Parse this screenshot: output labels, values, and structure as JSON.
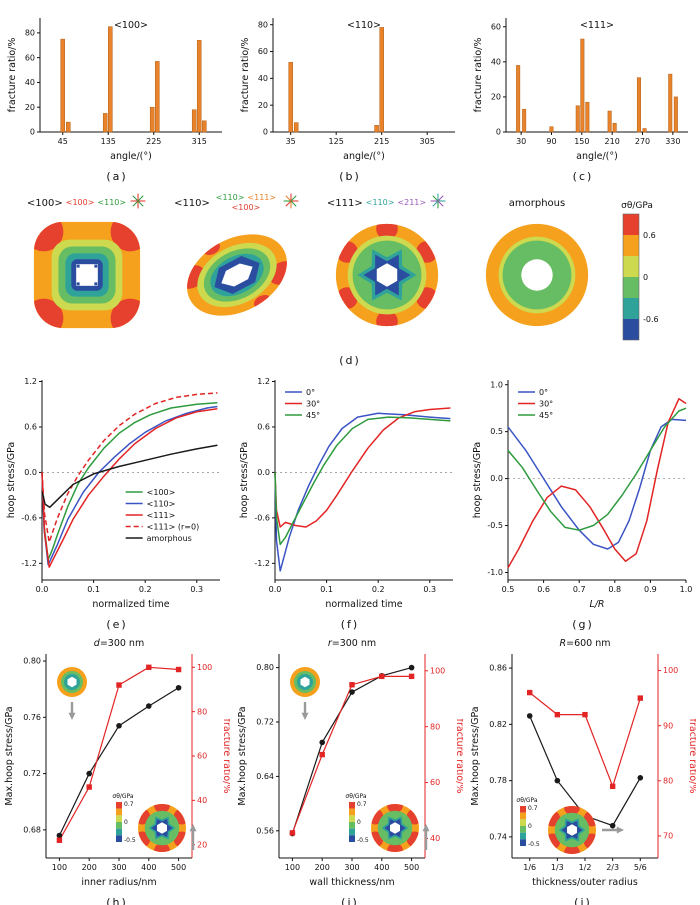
{
  "figure": {
    "captions": {
      "a": "(a)",
      "b": "(b)",
      "c": "(c)",
      "d": "(d)",
      "e": "(e)",
      "f": "(f)",
      "g": "(g)",
      "h": "(h)",
      "i": "(i)",
      "j": "(j)"
    }
  },
  "colors": {
    "bar": "#e8832c",
    "axis_red": "#e32424",
    "gray_arrow": "#9a9a9a",
    "stress_scale": [
      "#e6402e",
      "#f5a11d",
      "#cdd94e",
      "#66bd63",
      "#2fa39a",
      "#2b4da0"
    ]
  },
  "contour_row": {
    "plots": [
      {
        "title": "<100>",
        "annotations": [
          {
            "label": "<100>",
            "color": "#e23b2e"
          },
          {
            "label": "<110>",
            "color": "#2e9b3f"
          }
        ],
        "star_colors": [
          "#e23b2e",
          "#2e9b3f"
        ]
      },
      {
        "title": "<110>",
        "annotations": [
          {
            "label": "<110>",
            "color": "#2e9b3f"
          },
          {
            "label": "<111>",
            "color": "#e8832c"
          },
          {
            "label": "<100>",
            "color": "#e23b2e"
          }
        ],
        "star_colors": [
          "#e23b2e",
          "#2e9b3f",
          "#e8832c"
        ]
      },
      {
        "title": "<111>",
        "annotations": [
          {
            "label": "<110>",
            "color": "#2fa39a"
          },
          {
            "label": "<211>",
            "color": "#9b59b6"
          }
        ],
        "star_colors": [
          "#2fa39a",
          "#9b59b6",
          "#2e9b3f"
        ]
      },
      {
        "title": "amorphous",
        "annotations": [],
        "star_colors": []
      }
    ],
    "colorbar": {
      "title": "σθ/GPa",
      "tick_labels": [
        "0.6",
        "0",
        "-0.6"
      ]
    }
  },
  "chart_data": [
    {
      "id": "a",
      "type": "bar",
      "title": "<100>",
      "xlabel": "angle/(°)",
      "ylabel": "fracture ratio/%",
      "xlim": [
        0,
        360
      ],
      "ylim": [
        0,
        92
      ],
      "xticks": [
        45,
        135,
        225,
        315
      ],
      "yticks": [
        0,
        20,
        40,
        60,
        80
      ],
      "xdec": 0,
      "ydec": 0,
      "bar_width_deg": 8,
      "bars": [
        [
          45,
          75
        ],
        [
          56,
          8
        ],
        [
          129,
          15
        ],
        [
          139,
          85
        ],
        [
          222,
          20
        ],
        [
          232,
          57
        ],
        [
          305,
          18
        ],
        [
          315,
          74
        ],
        [
          325,
          9
        ]
      ]
    },
    {
      "id": "b",
      "type": "bar",
      "title": "<110>",
      "xlabel": "angle/(°)",
      "ylabel": "fracture ratio/%",
      "xlim": [
        0,
        360
      ],
      "ylim": [
        0,
        85
      ],
      "xticks": [
        35,
        125,
        215,
        305
      ],
      "yticks": [
        0,
        20,
        40,
        60,
        80
      ],
      "xdec": 0,
      "ydec": 0,
      "bar_width_deg": 8,
      "bars": [
        [
          35,
          52
        ],
        [
          46,
          7
        ],
        [
          205,
          5
        ],
        [
          215,
          78
        ]
      ]
    },
    {
      "id": "c",
      "type": "bar",
      "title": "<111>",
      "xlabel": "angle/(°)",
      "ylabel": "fracture ratio/%",
      "xlim": [
        0,
        360
      ],
      "ylim": [
        0,
        65
      ],
      "xticks": [
        30,
        90,
        150,
        210,
        270,
        330
      ],
      "yticks": [
        0,
        20,
        40,
        60
      ],
      "xdec": 0,
      "ydec": 0,
      "bar_width_deg": 7,
      "bars": [
        [
          24,
          38
        ],
        [
          36,
          13
        ],
        [
          90,
          3
        ],
        [
          142,
          15
        ],
        [
          151,
          53
        ],
        [
          161,
          17
        ],
        [
          205,
          12
        ],
        [
          215,
          5
        ],
        [
          263,
          31
        ],
        [
          274,
          2
        ],
        [
          325,
          33
        ],
        [
          336,
          20
        ]
      ]
    },
    {
      "id": "e",
      "type": "line",
      "xlabel": "normalized time",
      "ylabel": "hoop stress/GPa",
      "xlim": [
        0,
        0.345
      ],
      "ylim": [
        -1.42,
        1.22
      ],
      "xticks": [
        0,
        0.1,
        0.2,
        0.3
      ],
      "yticks": [
        -1.2,
        -0.6,
        0,
        0.6,
        1.2
      ],
      "xdec": 1,
      "ydec": 1,
      "zeroline": true,
      "legend": "br",
      "series": [
        {
          "name": "<100>",
          "color": "#2e9b3f",
          "x": [
            0,
            0.004,
            0.012,
            0.02,
            0.03,
            0.05,
            0.07,
            0.09,
            0.12,
            0.15,
            0.18,
            0.21,
            0.25,
            0.3,
            0.34
          ],
          "y": [
            0,
            -0.7,
            -1.15,
            -1.02,
            -0.82,
            -0.45,
            -0.15,
            0.06,
            0.32,
            0.52,
            0.66,
            0.76,
            0.85,
            0.9,
            0.92
          ]
        },
        {
          "name": "<110>",
          "color": "#3b54c4",
          "x": [
            0,
            0.004,
            0.012,
            0.02,
            0.03,
            0.05,
            0.08,
            0.11,
            0.14,
            0.17,
            0.2,
            0.24,
            0.28,
            0.32,
            0.34
          ],
          "y": [
            0,
            -0.75,
            -1.22,
            -1.1,
            -0.95,
            -0.62,
            -0.26,
            0,
            0.2,
            0.38,
            0.53,
            0.68,
            0.78,
            0.85,
            0.87
          ]
        },
        {
          "name": "<111>",
          "color": "#e32424",
          "x": [
            0,
            0.005,
            0.014,
            0.025,
            0.04,
            0.06,
            0.09,
            0.12,
            0.15,
            0.18,
            0.22,
            0.26,
            0.3,
            0.34
          ],
          "y": [
            0,
            -0.8,
            -1.25,
            -1.1,
            -0.9,
            -0.62,
            -0.3,
            -0.05,
            0.18,
            0.38,
            0.58,
            0.72,
            0.8,
            0.84
          ]
        },
        {
          "name": "<111> (r=0)",
          "color": "#e32424",
          "dash": "5 3",
          "x": [
            0,
            0.005,
            0.014,
            0.03,
            0.05,
            0.07,
            0.09,
            0.12,
            0.15,
            0.18,
            0.22,
            0.26,
            0.3,
            0.34
          ],
          "y": [
            0,
            -0.55,
            -0.92,
            -0.6,
            -0.28,
            -0.04,
            0.16,
            0.42,
            0.62,
            0.77,
            0.91,
            0.99,
            1.03,
            1.05
          ]
        },
        {
          "name": "amorphous",
          "color": "#1a1a1a",
          "x": [
            0,
            0.006,
            0.015,
            0.03,
            0.06,
            0.1,
            0.15,
            0.2,
            0.25,
            0.3,
            0.34
          ],
          "y": [
            -0.25,
            -0.42,
            -0.46,
            -0.36,
            -0.16,
            -0.02,
            0.08,
            0.16,
            0.24,
            0.31,
            0.36
          ]
        }
      ]
    },
    {
      "id": "f",
      "type": "line",
      "xlabel": "normalized time",
      "ylabel": "hoop stress/GPa",
      "xlim": [
        0,
        0.345
      ],
      "ylim": [
        -1.42,
        1.22
      ],
      "xticks": [
        0,
        0.1,
        0.2,
        0.3
      ],
      "yticks": [
        -1.2,
        -0.6,
        0,
        0.6,
        1.2
      ],
      "xdec": 1,
      "ydec": 1,
      "zeroline": true,
      "legend": "tl",
      "series": [
        {
          "name": "0°",
          "color": "#3b54c4",
          "x": [
            0,
            0.003,
            0.01,
            0.018,
            0.028,
            0.045,
            0.065,
            0.085,
            0.105,
            0.13,
            0.16,
            0.2,
            0.25,
            0.3,
            0.34
          ],
          "y": [
            0,
            -0.9,
            -1.3,
            -1.1,
            -0.85,
            -0.5,
            -0.18,
            0.1,
            0.35,
            0.58,
            0.73,
            0.78,
            0.76,
            0.73,
            0.71
          ]
        },
        {
          "name": "30°",
          "color": "#e32424",
          "x": [
            0,
            0.003,
            0.01,
            0.02,
            0.04,
            0.06,
            0.08,
            0.1,
            0.12,
            0.15,
            0.18,
            0.21,
            0.24,
            0.27,
            0.3,
            0.34
          ],
          "y": [
            0,
            -0.5,
            -0.72,
            -0.66,
            -0.7,
            -0.72,
            -0.64,
            -0.5,
            -0.3,
            0.02,
            0.32,
            0.56,
            0.72,
            0.8,
            0.83,
            0.85
          ]
        },
        {
          "name": "45°",
          "color": "#2e9b3f",
          "x": [
            0,
            0.003,
            0.01,
            0.02,
            0.035,
            0.055,
            0.075,
            0.095,
            0.12,
            0.15,
            0.18,
            0.22,
            0.26,
            0.3,
            0.34
          ],
          "y": [
            0,
            -0.6,
            -0.95,
            -0.86,
            -0.66,
            -0.4,
            -0.14,
            0.1,
            0.36,
            0.58,
            0.7,
            0.73,
            0.72,
            0.7,
            0.68
          ]
        }
      ]
    },
    {
      "id": "g",
      "type": "line",
      "xlabel": "L/R",
      "ylabel": "hoop stress/GPa",
      "xlim": [
        0.5,
        1.0
      ],
      "ylim": [
        -1.08,
        1.05
      ],
      "xticks": [
        0.5,
        0.6,
        0.7,
        0.8,
        0.9,
        1.0
      ],
      "yticks": [
        -1,
        -0.5,
        0,
        0.5,
        1
      ],
      "xdec": 1,
      "ydec": 1,
      "zeroline": true,
      "legend": "tl",
      "series": [
        {
          "name": "0°",
          "color": "#3b54c4",
          "x": [
            0.5,
            0.55,
            0.6,
            0.65,
            0.7,
            0.74,
            0.78,
            0.81,
            0.84,
            0.87,
            0.9,
            0.93,
            0.96,
            1.0
          ],
          "y": [
            0.55,
            0.3,
            0,
            -0.3,
            -0.55,
            -0.7,
            -0.75,
            -0.68,
            -0.45,
            -0.1,
            0.3,
            0.55,
            0.63,
            0.62
          ]
        },
        {
          "name": "30°",
          "color": "#e32424",
          "x": [
            0.5,
            0.53,
            0.57,
            0.61,
            0.65,
            0.69,
            0.73,
            0.77,
            0.8,
            0.83,
            0.86,
            0.89,
            0.92,
            0.95,
            0.98,
            1.0
          ],
          "y": [
            -0.95,
            -0.75,
            -0.45,
            -0.2,
            -0.08,
            -0.12,
            -0.3,
            -0.55,
            -0.75,
            -0.88,
            -0.8,
            -0.45,
            0.1,
            0.6,
            0.85,
            0.8
          ]
        },
        {
          "name": "45°",
          "color": "#2e9b3f",
          "x": [
            0.5,
            0.54,
            0.58,
            0.62,
            0.66,
            0.7,
            0.74,
            0.78,
            0.82,
            0.86,
            0.9,
            0.94,
            0.98,
            1.0
          ],
          "y": [
            0.3,
            0.12,
            -0.12,
            -0.35,
            -0.52,
            -0.55,
            -0.5,
            -0.38,
            -0.18,
            0.05,
            0.3,
            0.55,
            0.72,
            0.75
          ]
        }
      ]
    },
    {
      "id": "h",
      "type": "dual",
      "title": "d=300 nm",
      "xlabel": "inner radius/nm",
      "xlim": [
        55,
        545
      ],
      "xticks": [
        100,
        200,
        300,
        400,
        500
      ],
      "xdec": 0,
      "left": {
        "label": "Max.hoop stress/GPa",
        "lim": [
          0.66,
          0.805
        ],
        "ticks": [
          0.68,
          0.72,
          0.76,
          0.8
        ],
        "dec": 2
      },
      "right": {
        "label": "fracture ratio/%",
        "lim": [
          14,
          106
        ],
        "ticks": [
          20,
          40,
          60,
          80,
          100
        ],
        "dec": 0
      },
      "x": [
        100,
        200,
        300,
        400,
        500
      ],
      "left_y": [
        0.676,
        0.72,
        0.754,
        0.768,
        0.781
      ],
      "right_y": [
        22,
        46,
        92,
        100,
        99
      ],
      "insets": {
        "hex_ring": true,
        "colorbar": {
          "title": "σθ/GPa",
          "tick_labels": [
            "0.7",
            "0",
            "-0.5"
          ]
        },
        "arrows": [
          "down",
          "up"
        ]
      }
    },
    {
      "id": "i",
      "type": "dual",
      "title": "r=300 nm",
      "xlabel": "wall thickness/nm",
      "xlim": [
        55,
        545
      ],
      "xticks": [
        100,
        200,
        300,
        400,
        500
      ],
      "xdec": 0,
      "left": {
        "label": "Max.hoop stress/GPa",
        "lim": [
          0.52,
          0.82
        ],
        "ticks": [
          0.56,
          0.64,
          0.72,
          0.8
        ],
        "dec": 2
      },
      "right": {
        "label": "fracture ratio/%",
        "lim": [
          33,
          106
        ],
        "ticks": [
          40,
          60,
          80,
          100
        ],
        "dec": 0
      },
      "x": [
        100,
        200,
        300,
        400,
        500
      ],
      "left_y": [
        0.556,
        0.69,
        0.764,
        0.788,
        0.8
      ],
      "right_y": [
        42,
        70,
        95,
        98,
        98
      ],
      "insets": {
        "hex_ring": true,
        "colorbar": {
          "title": "σθ/GPa",
          "tick_labels": [
            "0.7",
            "0",
            "-0.5"
          ]
        },
        "arrows": [
          "down",
          "up"
        ]
      }
    },
    {
      "id": "j",
      "type": "dual",
      "title": "R=600 nm",
      "xlabel": "thickness/outer radius",
      "xlim": [
        0.06,
        0.94
      ],
      "xticks": [
        0.1667,
        0.3333,
        0.5,
        0.6667,
        0.8333
      ],
      "xticklabels": [
        "1/6",
        "1/3",
        "1/2",
        "2/3",
        "5/6"
      ],
      "left": {
        "label": "Max.hoop stress/GPa",
        "lim": [
          0.725,
          0.87
        ],
        "ticks": [
          0.74,
          0.78,
          0.82,
          0.86
        ],
        "dec": 2
      },
      "right": {
        "label": "fracture ratio/%",
        "lim": [
          66,
          103
        ],
        "ticks": [
          70,
          80,
          90,
          100
        ],
        "dec": 0
      },
      "x": [
        0.1667,
        0.3333,
        0.5,
        0.6667,
        0.8333
      ],
      "left_y": [
        0.826,
        0.78,
        0.755,
        0.748,
        0.782
      ],
      "right_y": [
        96,
        92,
        92,
        79,
        95
      ],
      "insets": {
        "colorbar": {
          "title": "σθ/GPa",
          "tick_labels": [
            "0.7",
            "0",
            "-0.5"
          ]
        },
        "arrows": [
          "right"
        ]
      }
    }
  ]
}
